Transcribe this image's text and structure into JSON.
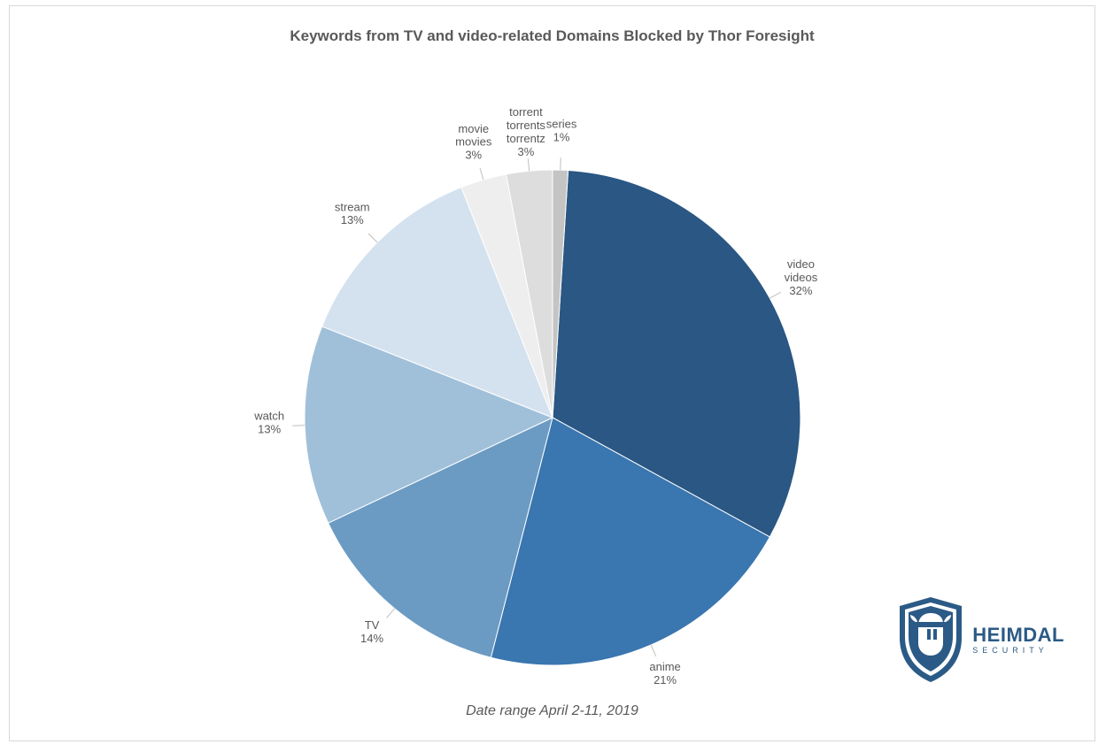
{
  "title": "Keywords from TV and video-related Domains Blocked by Thor Foresight",
  "title_fontsize": 17,
  "title_color": "#595959",
  "footer": "Date range April 2-11, 2019",
  "footer_fontsize": 16,
  "footer_color": "#595959",
  "background_color": "#ffffff",
  "border_color": "#d9d9d9",
  "pie": {
    "type": "pie",
    "radius": 280,
    "label_offset": 40,
    "label_fontsize": 13,
    "label_color": "#595959",
    "leader_color": "#bfbfbf",
    "start_angle_deg": 3.6,
    "slices": [
      {
        "label_lines": [
          "video",
          "videos"
        ],
        "percent": 32,
        "color": "#2a5783"
      },
      {
        "label_lines": [
          "anime"
        ],
        "percent": 21,
        "color": "#3a76af"
      },
      {
        "label_lines": [
          "TV"
        ],
        "percent": 14,
        "color": "#6b9bc3"
      },
      {
        "label_lines": [
          "watch"
        ],
        "percent": 13,
        "color": "#a0c0da"
      },
      {
        "label_lines": [
          "stream"
        ],
        "percent": 13,
        "color": "#d4e2ef"
      },
      {
        "label_lines": [
          "movie",
          "movies"
        ],
        "percent": 3,
        "color": "#eeeeee"
      },
      {
        "label_lines": [
          "torrent",
          "torrents",
          "torrentz"
        ],
        "percent": 3,
        "color": "#dddddd"
      },
      {
        "label_lines": [
          "series"
        ],
        "percent": 1,
        "color": "#c4c4c4"
      }
    ]
  },
  "logo": {
    "brand_top": "HEIMDAL",
    "brand_bottom": "SECURITY",
    "shield_outer": "#2b5a86",
    "shield_inner": "#2b5a86",
    "accent": "#ffffff"
  }
}
